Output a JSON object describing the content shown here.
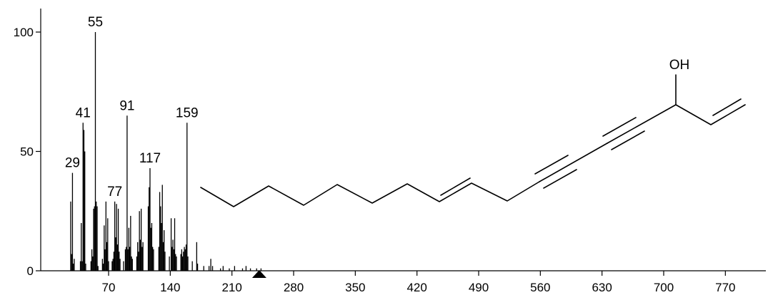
{
  "chart_data": {
    "type": "bar",
    "title": "",
    "xlabel": "",
    "ylabel": "",
    "xlim": [
      22,
      800
    ],
    "ylim": [
      0,
      110
    ],
    "x_ticks": [
      70,
      140,
      210,
      280,
      350,
      420,
      490,
      560,
      630,
      700,
      770
    ],
    "y_ticks": [
      0,
      50,
      100
    ],
    "grid": false,
    "marker_at_x": 241,
    "labeled_peaks": [
      {
        "x": 29,
        "label": "29"
      },
      {
        "x": 41,
        "label": "41"
      },
      {
        "x": 55,
        "label": "55"
      },
      {
        "x": 77,
        "label": "77"
      },
      {
        "x": 91,
        "label": "91"
      },
      {
        "x": 117,
        "label": "117"
      },
      {
        "x": 159,
        "label": "159"
      }
    ],
    "peaks": [
      {
        "x": 27,
        "y": 29
      },
      {
        "x": 28,
        "y": 7
      },
      {
        "x": 29,
        "y": 41
      },
      {
        "x": 30,
        "y": 3
      },
      {
        "x": 31,
        "y": 5
      },
      {
        "x": 38,
        "y": 4
      },
      {
        "x": 39,
        "y": 20
      },
      {
        "x": 40,
        "y": 4
      },
      {
        "x": 41,
        "y": 62
      },
      {
        "x": 42,
        "y": 59
      },
      {
        "x": 43,
        "y": 50
      },
      {
        "x": 44,
        "y": 3
      },
      {
        "x": 50,
        "y": 4
      },
      {
        "x": 51,
        "y": 9
      },
      {
        "x": 52,
        "y": 6
      },
      {
        "x": 53,
        "y": 26
      },
      {
        "x": 54,
        "y": 27
      },
      {
        "x": 55,
        "y": 100
      },
      {
        "x": 56,
        "y": 29
      },
      {
        "x": 57,
        "y": 27
      },
      {
        "x": 58,
        "y": 2
      },
      {
        "x": 63,
        "y": 5
      },
      {
        "x": 64,
        "y": 3
      },
      {
        "x": 65,
        "y": 19
      },
      {
        "x": 66,
        "y": 9
      },
      {
        "x": 67,
        "y": 29
      },
      {
        "x": 68,
        "y": 12
      },
      {
        "x": 69,
        "y": 22
      },
      {
        "x": 70,
        "y": 4
      },
      {
        "x": 74,
        "y": 4
      },
      {
        "x": 75,
        "y": 5
      },
      {
        "x": 76,
        "y": 8
      },
      {
        "x": 77,
        "y": 29
      },
      {
        "x": 78,
        "y": 14
      },
      {
        "x": 79,
        "y": 28
      },
      {
        "x": 80,
        "y": 11
      },
      {
        "x": 81,
        "y": 26
      },
      {
        "x": 82,
        "y": 8
      },
      {
        "x": 83,
        "y": 5
      },
      {
        "x": 87,
        "y": 4
      },
      {
        "x": 89,
        "y": 9
      },
      {
        "x": 90,
        "y": 10
      },
      {
        "x": 91,
        "y": 65
      },
      {
        "x": 92,
        "y": 9
      },
      {
        "x": 93,
        "y": 18
      },
      {
        "x": 94,
        "y": 10
      },
      {
        "x": 95,
        "y": 23
      },
      {
        "x": 96,
        "y": 6
      },
      {
        "x": 97,
        "y": 5
      },
      {
        "x": 102,
        "y": 6
      },
      {
        "x": 103,
        "y": 12
      },
      {
        "x": 104,
        "y": 8
      },
      {
        "x": 105,
        "y": 25
      },
      {
        "x": 106,
        "y": 13
      },
      {
        "x": 107,
        "y": 26
      },
      {
        "x": 108,
        "y": 10
      },
      {
        "x": 109,
        "y": 12
      },
      {
        "x": 115,
        "y": 27
      },
      {
        "x": 116,
        "y": 35
      },
      {
        "x": 117,
        "y": 43
      },
      {
        "x": 118,
        "y": 18
      },
      {
        "x": 119,
        "y": 20
      },
      {
        "x": 120,
        "y": 10
      },
      {
        "x": 121,
        "y": 9
      },
      {
        "x": 127,
        "y": 10
      },
      {
        "x": 128,
        "y": 33
      },
      {
        "x": 129,
        "y": 27
      },
      {
        "x": 130,
        "y": 20
      },
      {
        "x": 131,
        "y": 36
      },
      {
        "x": 132,
        "y": 12
      },
      {
        "x": 133,
        "y": 17
      },
      {
        "x": 134,
        "y": 8
      },
      {
        "x": 139,
        "y": 6
      },
      {
        "x": 141,
        "y": 22
      },
      {
        "x": 142,
        "y": 10
      },
      {
        "x": 143,
        "y": 13
      },
      {
        "x": 144,
        "y": 9
      },
      {
        "x": 145,
        "y": 22
      },
      {
        "x": 146,
        "y": 7
      },
      {
        "x": 147,
        "y": 6
      },
      {
        "x": 152,
        "y": 7
      },
      {
        "x": 153,
        "y": 9
      },
      {
        "x": 154,
        "y": 6
      },
      {
        "x": 155,
        "y": 8
      },
      {
        "x": 156,
        "y": 10
      },
      {
        "x": 157,
        "y": 9
      },
      {
        "x": 158,
        "y": 11
      },
      {
        "x": 159,
        "y": 62
      },
      {
        "x": 160,
        "y": 6
      },
      {
        "x": 165,
        "y": 4
      },
      {
        "x": 170,
        "y": 12
      },
      {
        "x": 171,
        "y": 3
      },
      {
        "x": 178,
        "y": 2
      },
      {
        "x": 184,
        "y": 2
      },
      {
        "x": 186,
        "y": 5
      },
      {
        "x": 188,
        "y": 2
      },
      {
        "x": 197,
        "y": 1
      },
      {
        "x": 200,
        "y": 2
      },
      {
        "x": 207,
        "y": 1
      },
      {
        "x": 213,
        "y": 2
      },
      {
        "x": 222,
        "y": 1
      },
      {
        "x": 226,
        "y": 2
      },
      {
        "x": 231,
        "y": 1
      },
      {
        "x": 238,
        "y": 1
      },
      {
        "x": 243,
        "y": 1
      }
    ]
  },
  "molecule": {
    "oh_label": "OH"
  }
}
